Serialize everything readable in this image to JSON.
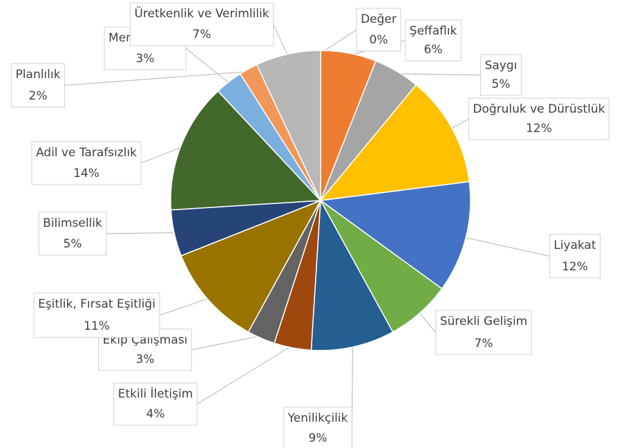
{
  "chart_data": {
    "type": "pie",
    "categories": [
      "Değer",
      "Şeffaflık",
      "Saygı",
      "Doğruluk ve Dürüstlük",
      "Liyakat",
      "Sürekli Gelişim",
      "Yenilikçilik",
      "Etkili İletişim",
      "Ekip Çalışması",
      "Eşitlik, Fırsat Eşitliği",
      "Bilimsellik",
      "Adil ve Tarafsızlık",
      "Memnuniyet",
      "Planlılık",
      "Üretkenlik ve Verimlilik"
    ],
    "values": [
      0,
      6,
      5,
      12,
      12,
      7,
      9,
      4,
      3,
      11,
      5,
      14,
      3,
      2,
      7
    ],
    "value_labels": [
      "0%",
      "6%",
      "5%",
      "12%",
      "12%",
      "7%",
      "9%",
      "4%",
      "3%",
      "11%",
      "5%",
      "14%",
      "3%",
      "2%",
      "7%"
    ],
    "colors": [
      "#5B9BD5",
      "#ED7D31",
      "#A5A5A5",
      "#FFC000",
      "#4472C4",
      "#70AD47",
      "#255E91",
      "#9E480E",
      "#636363",
      "#997300",
      "#264478",
      "#43682B",
      "#7CAFDD",
      "#F1975A",
      "#B7B7B7"
    ]
  }
}
